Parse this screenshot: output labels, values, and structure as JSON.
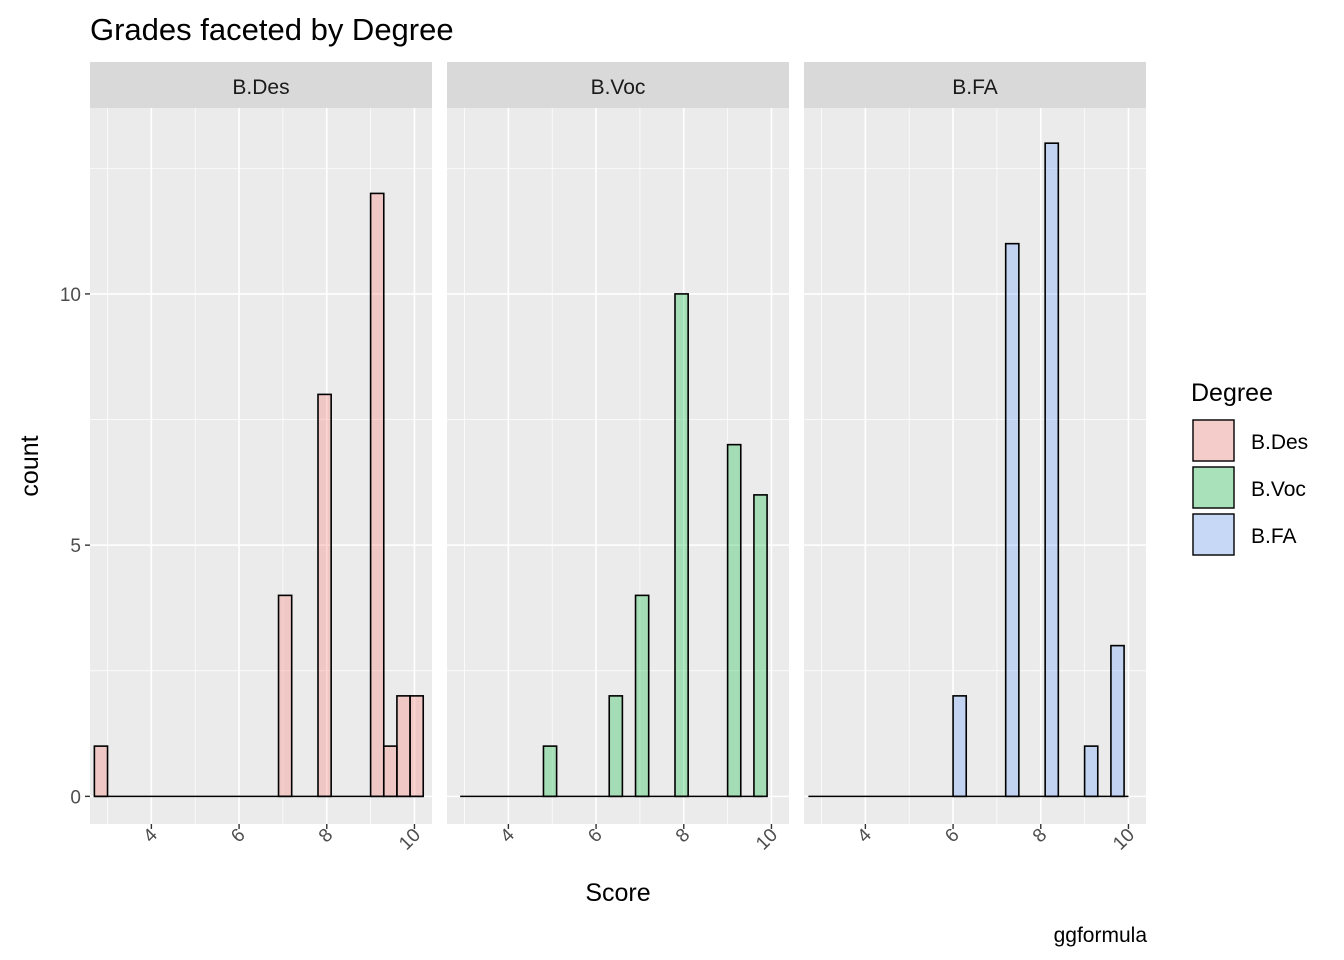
{
  "chart_data": {
    "type": "bar",
    "title": "Grades faceted by Degree",
    "xlabel": "Score",
    "ylabel": "count",
    "caption": "ggformula",
    "xlim": [
      2.6,
      10.4
    ],
    "ylim": [
      -0.55,
      13.7
    ],
    "x_ticks": [
      4,
      6,
      8,
      10
    ],
    "y_ticks": [
      0,
      5,
      10
    ],
    "bin_width": 0.3,
    "bin_origin": 2.7,
    "legend": {
      "title": "Degree",
      "position": "right",
      "entries": [
        {
          "label": "B.Des",
          "color": "#F8766D"
        },
        {
          "label": "B.Voc",
          "color": "#00BA38"
        },
        {
          "label": "B.FA",
          "color": "#619CFF"
        }
      ]
    },
    "fill_alpha": 0.3,
    "facets": [
      {
        "label": "B.Des",
        "color": "#F8766D",
        "counts": [
          1,
          0,
          0,
          0,
          0,
          0,
          0,
          0,
          0,
          0,
          0,
          0,
          0,
          0,
          4,
          0,
          0,
          8,
          0,
          0,
          0,
          12,
          1,
          2,
          2
        ],
        "x_range": [
          2.7,
          10.2
        ]
      },
      {
        "label": "B.Voc",
        "color": "#00BA38",
        "counts": [
          0,
          0,
          0,
          0,
          0,
          0,
          0,
          1,
          0,
          0,
          0,
          0,
          2,
          0,
          4,
          0,
          0,
          10,
          0,
          0,
          0,
          7,
          0,
          6
        ],
        "x_range": [
          2.9,
          9.8
        ]
      },
      {
        "label": "B.FA",
        "color": "#619CFF",
        "counts": [
          0,
          0,
          0,
          0,
          0,
          0,
          0,
          0,
          0,
          0,
          0,
          2,
          0,
          0,
          0,
          11,
          0,
          0,
          13,
          0,
          0,
          1,
          0,
          3
        ],
        "x_range": [
          2.7,
          10.0
        ]
      }
    ]
  }
}
